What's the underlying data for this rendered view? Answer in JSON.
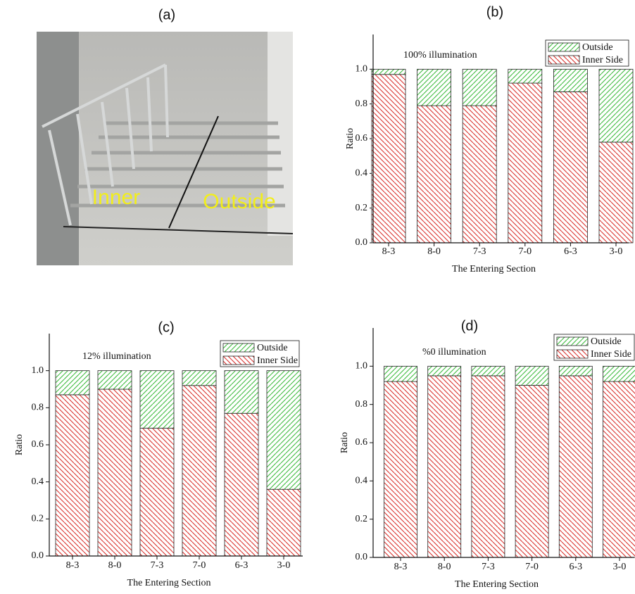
{
  "panel_a": {
    "title": "(a)",
    "labels": [
      "Inner",
      "Outside"
    ]
  },
  "chart_data": [
    {
      "type": "bar",
      "stacked": true,
      "title": "(b)",
      "annotation": "100% illumination",
      "xlabel": "The Entering Section",
      "ylabel": "Ratio",
      "categories": [
        "8-3",
        "8-0",
        "7-3",
        "7-0",
        "6-3",
        "3-0"
      ],
      "series": [
        {
          "name": "Inner Side",
          "color": "#d9302c",
          "values": [
            0.97,
            0.79,
            0.79,
            0.92,
            0.87,
            0.58
          ]
        },
        {
          "name": "Outside",
          "color": "#3dbb3d",
          "values": [
            0.03,
            0.21,
            0.21,
            0.08,
            0.13,
            0.42
          ]
        }
      ],
      "ylim": [
        0,
        1.2
      ],
      "yticks": [
        {
          "value": 0,
          "label": "0.0"
        },
        0.2,
        0.4,
        0.6,
        0.8,
        {
          "value": 1,
          "label": "1.0"
        }
      ],
      "legend": "upper right"
    },
    {
      "type": "bar",
      "stacked": true,
      "title": "(c)",
      "annotation": "12% illumination",
      "xlabel": "The Entering Section",
      "ylabel": "Ratio",
      "categories": [
        "8-3",
        "8-0",
        "7-3",
        "7-0",
        "6-3",
        "3-0"
      ],
      "series": [
        {
          "name": "Inner Side",
          "color": "#d9302c",
          "values": [
            0.87,
            0.9,
            0.69,
            0.92,
            0.77,
            0.36
          ]
        },
        {
          "name": "Outside",
          "color": "#3dbb3d",
          "values": [
            0.13,
            0.1,
            0.31,
            0.08,
            0.23,
            0.64
          ]
        }
      ],
      "ylim": [
        0,
        1.2
      ],
      "yticks": [
        {
          "value": 0,
          "label": "0.0"
        },
        0.2,
        0.4,
        0.6,
        0.8,
        {
          "value": 1,
          "label": "1.0"
        }
      ],
      "legend": "upper right"
    },
    {
      "type": "bar",
      "stacked": true,
      "title": "(d)",
      "annotation": "%0 illumination",
      "xlabel": "The Entering Section",
      "ylabel": "Ratio",
      "categories": [
        "8-3",
        "8-0",
        "7-3",
        "7-0",
        "6-3",
        "3-0"
      ],
      "series": [
        {
          "name": "Inner Side",
          "color": "#d9302c",
          "values": [
            0.92,
            0.95,
            0.95,
            0.9,
            0.95,
            0.92
          ]
        },
        {
          "name": "Outside",
          "color": "#3dbb3d",
          "values": [
            0.08,
            0.05,
            0.05,
            0.1,
            0.05,
            0.08
          ]
        }
      ],
      "ylim": [
        0,
        1.2
      ],
      "yticks": [
        {
          "value": 0,
          "label": "0.0"
        },
        0.2,
        0.4,
        0.6,
        0.8,
        {
          "value": 1,
          "label": "1.0"
        }
      ],
      "legend": "upper right"
    }
  ]
}
